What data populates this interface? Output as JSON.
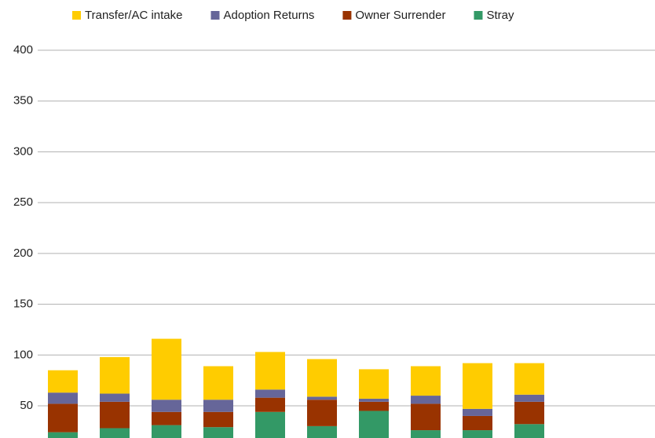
{
  "chart_data": {
    "type": "stacked_bar",
    "categories": [
      null,
      null,
      null,
      null,
      null,
      null,
      null,
      null,
      null,
      null
    ],
    "series": [
      {
        "name": "Transfer/AC intake",
        "color": "#ffcc00",
        "values": [
          22,
          36,
          60,
          33,
          37,
          37,
          29,
          29,
          45,
          31
        ]
      },
      {
        "name": "Adoption Returns",
        "color": "#666699",
        "values": [
          11,
          8,
          12,
          12,
          8,
          3,
          3,
          8,
          7,
          7
        ]
      },
      {
        "name": "Owner Surrender",
        "color": "#993300",
        "values": [
          28,
          26,
          13,
          15,
          14,
          26,
          9,
          26,
          14,
          22
        ]
      },
      {
        "name": "Stray",
        "color": "#339966",
        "values": [
          24,
          28,
          31,
          29,
          44,
          30,
          45,
          26,
          26,
          32
        ]
      }
    ],
    "ylim": [
      0,
      400
    ],
    "yticks": [
      50,
      100,
      150,
      200,
      250,
      300,
      350,
      400
    ],
    "grid": true,
    "legend": "top"
  }
}
